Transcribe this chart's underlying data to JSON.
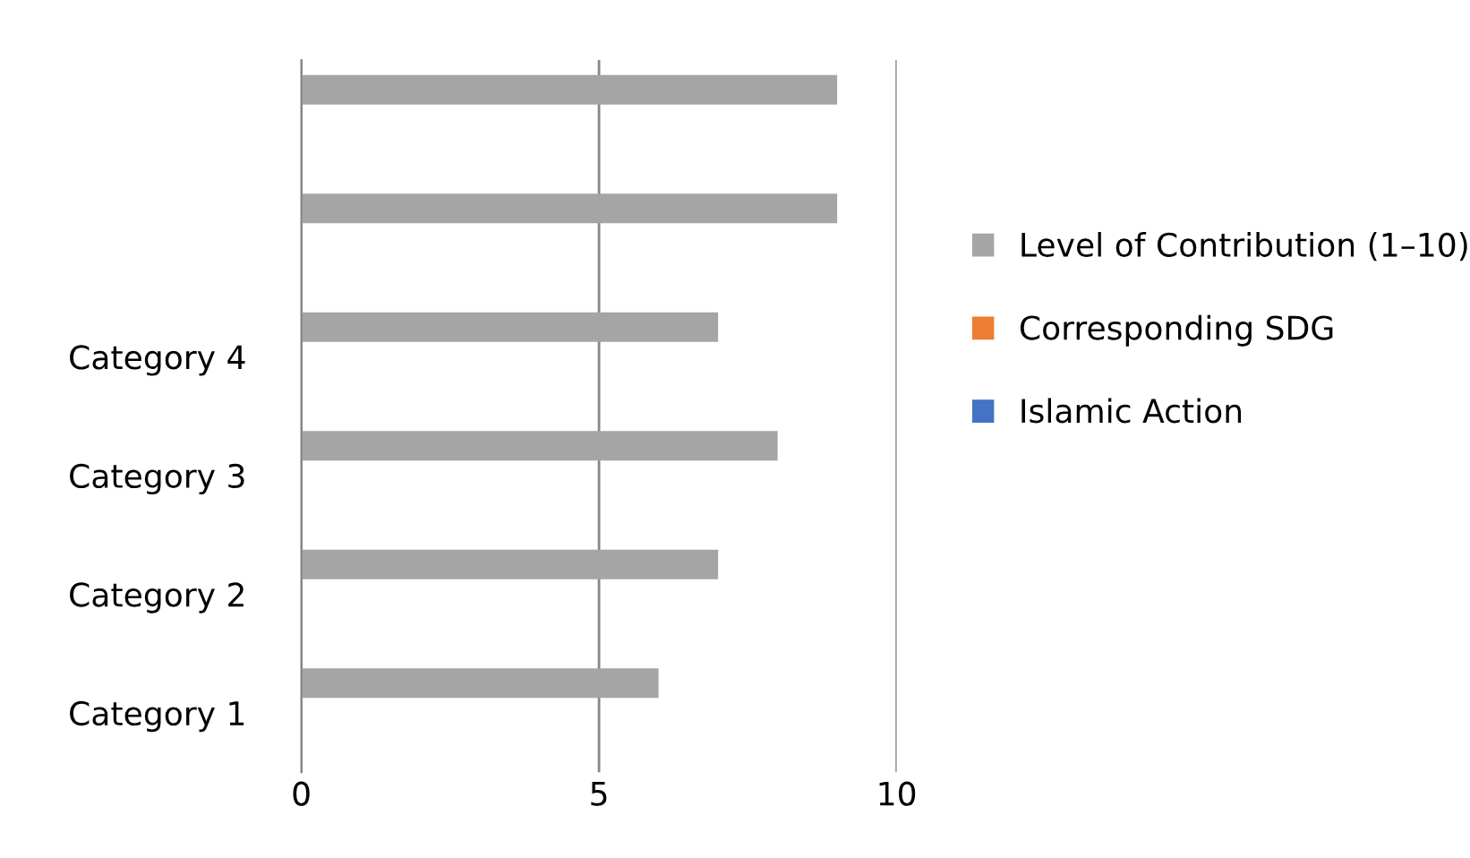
{
  "chart_data": {
    "type": "bar",
    "orientation": "horizontal",
    "categories": [
      null,
      null,
      "Category 4",
      "Category 3",
      "Category 2",
      "Category 1"
    ],
    "series": [
      {
        "name": "Level of Contribution (1–10)",
        "color": "#a5a5a5",
        "values": [
          9,
          9,
          7,
          8,
          7,
          6
        ]
      },
      {
        "name": "Corresponding SDG",
        "color": "#ed7d31",
        "values": [
          null,
          null,
          null,
          null,
          null,
          null
        ]
      },
      {
        "name": "Islamic Action",
        "color": "#4472c4",
        "values": [
          null,
          null,
          null,
          null,
          null,
          null
        ]
      }
    ],
    "xlim": [
      0,
      10
    ],
    "xticks": [
      0,
      5,
      10
    ],
    "grid": "x",
    "legend": "right"
  }
}
